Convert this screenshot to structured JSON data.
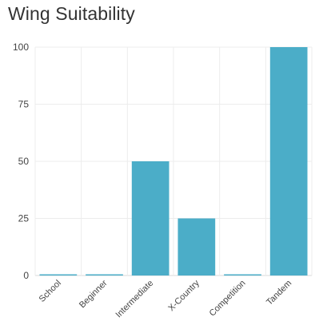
{
  "chart_data": {
    "type": "bar",
    "title": "Wing Suitability",
    "categories": [
      "School",
      "Beginner",
      "Intermediate",
      "X-Country",
      "Competition",
      "Tandem"
    ],
    "values": [
      0,
      0,
      50,
      25,
      0,
      100
    ],
    "xlabel": "",
    "ylabel": "",
    "ylim": [
      0,
      100
    ],
    "yticks": [
      0,
      25,
      50,
      75,
      100
    ],
    "grid": true,
    "legend": "none",
    "bar_color": "#4badc8",
    "grid_color": "#ececec"
  }
}
